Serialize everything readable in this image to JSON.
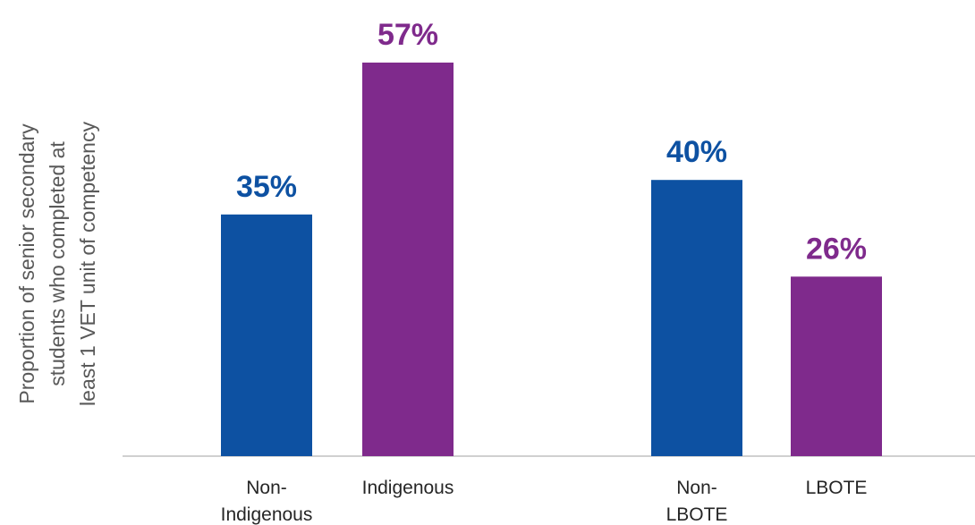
{
  "chart_data": {
    "type": "bar",
    "ylabel_lines": [
      "Proportion of senior secondary",
      "students who completed at",
      "least 1 VET unit of competency"
    ],
    "colors": {
      "blue": "#0d51a2",
      "purple": "#7f2a8c"
    },
    "ylim": [
      0,
      60
    ],
    "grid": false,
    "bars": [
      {
        "category": "Non-Indigenous",
        "label_lines": [
          "Non-",
          "Indigenous"
        ],
        "value": 35,
        "value_label": "35%",
        "color": "#0d51a2"
      },
      {
        "category": "Indigenous",
        "label_lines": [
          "Indigenous"
        ],
        "value": 57,
        "value_label": "57%",
        "color": "#7f2a8c"
      },
      {
        "category": "Non-LBOTE",
        "label_lines": [
          "Non-",
          "LBOTE"
        ],
        "value": 40,
        "value_label": "40%",
        "color": "#0d51a2"
      },
      {
        "category": "LBOTE",
        "label_lines": [
          "LBOTE"
        ],
        "value": 26,
        "value_label": "26%",
        "color": "#7f2a8c"
      }
    ]
  }
}
